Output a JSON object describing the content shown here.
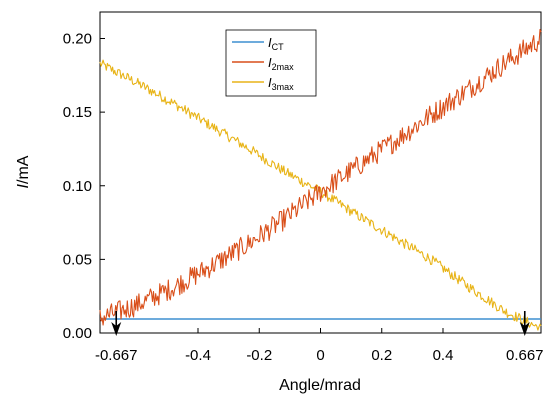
{
  "chart_data": {
    "type": "line",
    "xlabel": "Angle/mrad",
    "ylabel_italic": "I",
    "ylabel_unit": "/mA",
    "xlim": [
      -0.72,
      0.72
    ],
    "ylim": [
      0.0,
      0.218
    ],
    "x_ticks": [
      {
        "v": -0.667,
        "label": "-0.667"
      },
      {
        "v": -0.4,
        "label": "-0.4"
      },
      {
        "v": -0.2,
        "label": "-0.2"
      },
      {
        "v": 0.0,
        "label": "0"
      },
      {
        "v": 0.2,
        "label": "0.2"
      },
      {
        "v": 0.4,
        "label": "0.4"
      },
      {
        "v": 0.667,
        "label": "0.667"
      }
    ],
    "y_ticks": [
      {
        "v": 0.0,
        "label": "0.00"
      },
      {
        "v": 0.05,
        "label": "0.05"
      },
      {
        "v": 0.1,
        "label": "0.10"
      },
      {
        "v": 0.15,
        "label": "0.15"
      },
      {
        "v": 0.2,
        "label": "0.20"
      }
    ],
    "arrows_at": [
      -0.667,
      0.667
    ],
    "legend": {
      "placement": "top-center"
    },
    "series": [
      {
        "name_main": "I",
        "name_sub": "CT",
        "color": "#3d8fd1",
        "x": [
          -0.72,
          0.72
        ],
        "y": [
          0.0095,
          0.0095
        ]
      },
      {
        "name_main": "I",
        "name_sub": "2max",
        "color": "#d94f1a",
        "x": [
          -0.72,
          -0.6,
          -0.48,
          -0.36,
          -0.24,
          -0.12,
          0.0,
          0.12,
          0.24,
          0.36,
          0.48,
          0.6,
          0.72
        ],
        "y": [
          0.01,
          0.019,
          0.031,
          0.045,
          0.06,
          0.077,
          0.096,
          0.113,
          0.13,
          0.148,
          0.165,
          0.183,
          0.2
        ]
      },
      {
        "name_main": "I",
        "name_sub": "3max",
        "color": "#e8b418",
        "x": [
          -0.72,
          -0.6,
          -0.48,
          -0.36,
          -0.24,
          -0.12,
          0.0,
          0.12,
          0.24,
          0.36,
          0.48,
          0.6,
          0.72
        ],
        "y": [
          0.183,
          0.17,
          0.156,
          0.141,
          0.126,
          0.11,
          0.096,
          0.08,
          0.065,
          0.05,
          0.032,
          0.015,
          0.003
        ]
      }
    ]
  }
}
